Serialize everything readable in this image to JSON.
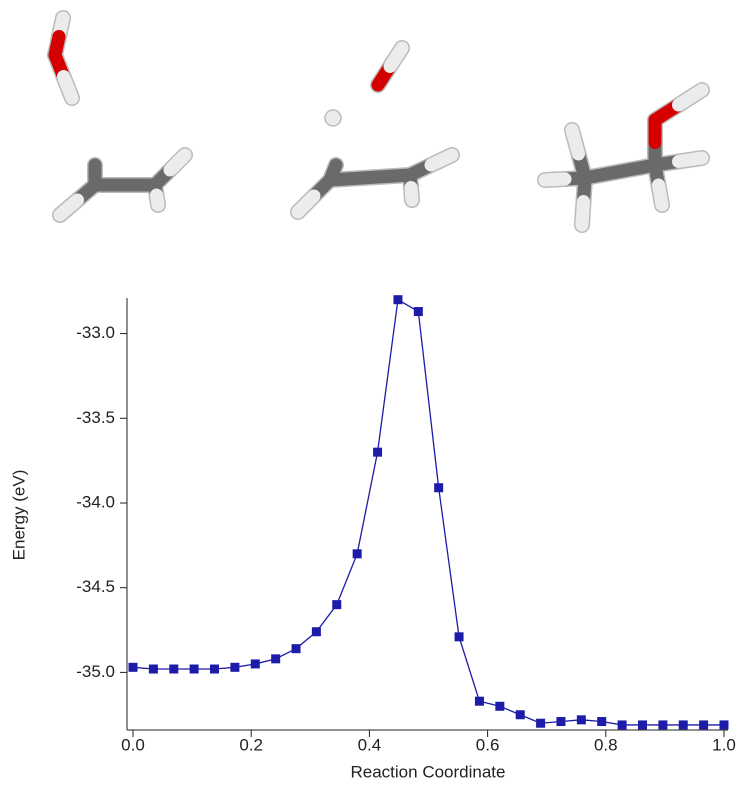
{
  "chart_data": {
    "type": "line",
    "xlabel": "Reaction Coordinate",
    "ylabel": "Energy (eV)",
    "x": [
      0,
      0.0345,
      0.069,
      0.1034,
      0.1379,
      0.1724,
      0.2069,
      0.2414,
      0.2759,
      0.3103,
      0.3448,
      0.3793,
      0.4138,
      0.4483,
      0.4828,
      0.5172,
      0.5517,
      0.5862,
      0.6207,
      0.6552,
      0.6897,
      0.7241,
      0.7586,
      0.7931,
      0.8276,
      0.8621,
      0.8966,
      0.931,
      0.9655,
      1.0
    ],
    "values": [
      -34.97,
      -34.98,
      -34.98,
      -34.98,
      -34.98,
      -34.97,
      -34.95,
      -34.92,
      -34.86,
      -34.76,
      -34.6,
      -34.3,
      -33.7,
      -32.8,
      -32.87,
      -33.91,
      -34.79,
      -35.17,
      -35.2,
      -35.25,
      -35.3,
      -35.29,
      -35.28,
      -35.29,
      -35.31,
      -35.31,
      -35.31,
      -35.31,
      -35.31,
      -35.31
    ],
    "color": "#1c1ca8",
    "marker": "square",
    "xlim": [
      0,
      1.0
    ],
    "xticks": [
      {
        "value": 0,
        "label": "0.0"
      },
      0.2,
      0.4,
      0.6,
      0.8,
      {
        "value": 1.0,
        "label": "1.0"
      }
    ],
    "ylim": [
      -35.34,
      -32.79
    ],
    "yticks": [
      {
        "value": -35.0,
        "label": "-35.0"
      },
      -34.5,
      {
        "value": -34.0,
        "label": "-34.0"
      },
      -33.5,
      {
        "value": -33.0,
        "label": "-33.0"
      }
    ]
  }
}
